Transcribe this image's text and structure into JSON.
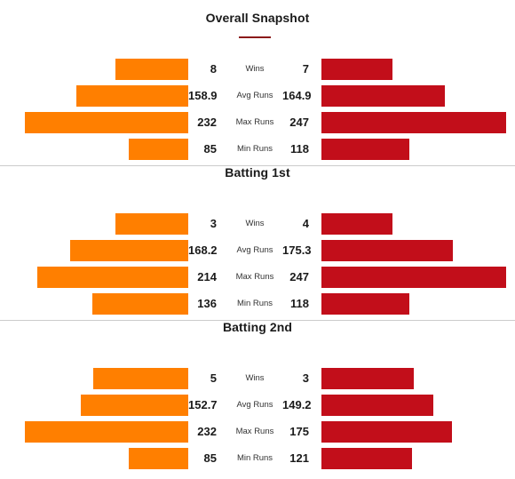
{
  "colors": {
    "team_left": "#ff7f00",
    "team_right": "#c20e1a",
    "accent_underline": "#8b1a1a"
  },
  "scale_max_runs": 247,
  "sections": [
    {
      "title": "Overall Snapshot",
      "rows": [
        {
          "label": "Wins",
          "left": "8",
          "right": "7",
          "left_frac": 0.42,
          "right_frac": 0.385
        },
        {
          "label": "Avg Runs",
          "left": "158.9",
          "right": "164.9",
          "left_frac": 0.643,
          "right_frac": 0.667
        },
        {
          "label": "Max Runs",
          "left": "232",
          "right": "247",
          "left_frac": 0.939,
          "right_frac": 1.0
        },
        {
          "label": "Min Runs",
          "left": "85",
          "right": "118",
          "left_frac": 0.344,
          "right_frac": 0.478
        }
      ]
    },
    {
      "title": "Batting 1st",
      "rows": [
        {
          "label": "Wins",
          "left": "3",
          "right": "4",
          "left_frac": 0.42,
          "right_frac": 0.385
        },
        {
          "label": "Avg Runs",
          "left": "168.2",
          "right": "175.3",
          "left_frac": 0.681,
          "right_frac": 0.71
        },
        {
          "label": "Max Runs",
          "left": "214",
          "right": "247",
          "left_frac": 0.866,
          "right_frac": 1.0
        },
        {
          "label": "Min Runs",
          "left": "136",
          "right": "118",
          "left_frac": 0.551,
          "right_frac": 0.478
        }
      ]
    },
    {
      "title": "Batting 2nd",
      "rows": [
        {
          "label": "Wins",
          "left": "5",
          "right": "3",
          "left_frac": 0.545,
          "right_frac": 0.5
        },
        {
          "label": "Avg Runs",
          "left": "152.7",
          "right": "149.2",
          "left_frac": 0.618,
          "right_frac": 0.604
        },
        {
          "label": "Max Runs",
          "left": "232",
          "right": "175",
          "left_frac": 0.939,
          "right_frac": 0.709
        },
        {
          "label": "Min Runs",
          "left": "85",
          "right": "121",
          "left_frac": 0.344,
          "right_frac": 0.49
        }
      ]
    }
  ]
}
